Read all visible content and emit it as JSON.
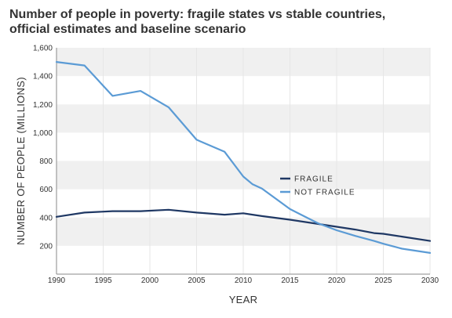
{
  "chart_data": {
    "type": "line",
    "title_lines": [
      "Number of people in poverty: fragile states vs stable countries,",
      "official estimates and baseline scenario"
    ],
    "xlabel": "YEAR",
    "ylabel": "NUMBER OF PEOPLE (MILLIONS)",
    "xlim": [
      1990,
      2030
    ],
    "ylim": [
      0,
      1600
    ],
    "x_ticks": [
      1990,
      1995,
      2000,
      2005,
      2010,
      2015,
      2020,
      2025,
      2030
    ],
    "y_ticks": [
      200,
      400,
      600,
      800,
      1000,
      1200,
      1400,
      1600
    ],
    "y_tick_labels": [
      "200",
      "400",
      "600",
      "800",
      "1,000",
      "1,200",
      "1,400",
      "1,600"
    ],
    "grid": "alternating horizontal bands",
    "legend_position": "center-right",
    "series": [
      {
        "name": "FRAGILE",
        "color": "#1f3864",
        "x": [
          1990,
          1993,
          1996,
          1999,
          2002,
          2005,
          2008,
          2010,
          2011,
          2012,
          2015,
          2018,
          2020,
          2022,
          2024,
          2025,
          2027,
          2030
        ],
        "y": [
          405,
          435,
          445,
          445,
          455,
          435,
          420,
          430,
          420,
          410,
          385,
          355,
          335,
          315,
          290,
          285,
          265,
          235
        ]
      },
      {
        "name": "NOT FRAGILE",
        "color": "#5b9bd5",
        "x": [
          1990,
          1993,
          1996,
          1999,
          2002,
          2005,
          2008,
          2010,
          2011,
          2012,
          2015,
          2018,
          2020,
          2022,
          2024,
          2025,
          2027,
          2030
        ],
        "y": [
          1500,
          1475,
          1260,
          1295,
          1180,
          950,
          865,
          690,
          635,
          605,
          460,
          360,
          310,
          270,
          235,
          215,
          180,
          150
        ]
      }
    ]
  }
}
